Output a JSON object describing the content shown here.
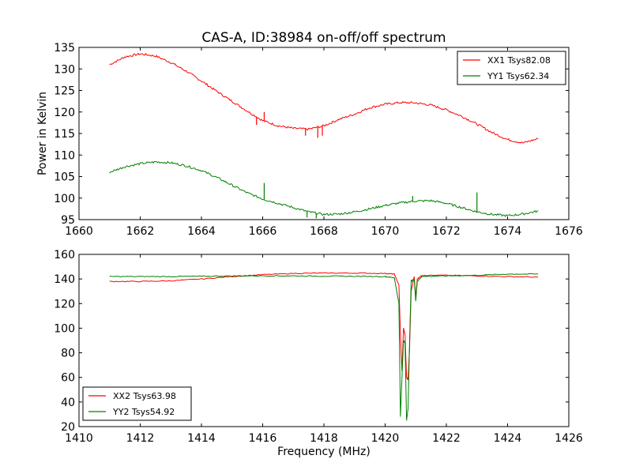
{
  "chart_data": [
    {
      "type": "line",
      "title": "CAS-A, ID:38984 on-off/off spectrum",
      "xlabel": "",
      "ylabel": "Power in Kelvin",
      "xlim": [
        1660,
        1676
      ],
      "ylim": [
        95,
        135
      ],
      "xticks": [
        1660,
        1662,
        1664,
        1666,
        1668,
        1670,
        1672,
        1674,
        1676
      ],
      "yticks": [
        95,
        100,
        105,
        110,
        115,
        120,
        125,
        130,
        135
      ],
      "grid": false,
      "legend_position": "top-right",
      "series": [
        {
          "name": "XX1 Tsys82.08",
          "color": "#ff0000",
          "points": [
            [
              1661.0,
              131.0
            ],
            [
              1661.5,
              132.8
            ],
            [
              1662.0,
              133.5
            ],
            [
              1662.5,
              133.0
            ],
            [
              1663.0,
              131.5
            ],
            [
              1663.5,
              129.5
            ],
            [
              1664.0,
              127.2
            ],
            [
              1664.5,
              124.8
            ],
            [
              1665.0,
              122.5
            ],
            [
              1665.5,
              120.2
            ],
            [
              1666.0,
              118.0
            ],
            [
              1666.5,
              116.8
            ],
            [
              1667.0,
              116.2
            ],
            [
              1667.5,
              116.0
            ],
            [
              1668.0,
              116.8
            ],
            [
              1668.5,
              118.3
            ],
            [
              1669.0,
              119.5
            ],
            [
              1669.5,
              121.0
            ],
            [
              1670.0,
              121.8
            ],
            [
              1670.5,
              122.2
            ],
            [
              1671.0,
              122.1
            ],
            [
              1671.5,
              121.6
            ],
            [
              1672.0,
              120.5
            ],
            [
              1672.5,
              119.0
            ],
            [
              1673.0,
              117.2
            ],
            [
              1673.5,
              115.2
            ],
            [
              1674.0,
              113.6
            ],
            [
              1674.5,
              112.8
            ],
            [
              1675.0,
              113.8
            ]
          ],
          "spikes": [
            [
              1665.8,
              117.0
            ],
            [
              1666.05,
              120.0
            ],
            [
              1667.4,
              114.5
            ],
            [
              1667.8,
              114.0
            ],
            [
              1667.95,
              114.5
            ]
          ]
        },
        {
          "name": "YY1 Tsys62.34",
          "color": "#008000",
          "points": [
            [
              1661.0,
              106.0
            ],
            [
              1661.5,
              107.3
            ],
            [
              1662.0,
              108.0
            ],
            [
              1662.5,
              108.4
            ],
            [
              1663.0,
              108.2
            ],
            [
              1663.5,
              107.5
            ],
            [
              1664.0,
              106.4
            ],
            [
              1664.5,
              104.8
            ],
            [
              1665.0,
              103.0
            ],
            [
              1665.5,
              101.2
            ],
            [
              1666.0,
              99.8
            ],
            [
              1666.5,
              98.8
            ],
            [
              1667.0,
              97.8
            ],
            [
              1667.5,
              96.8
            ],
            [
              1668.0,
              96.2
            ],
            [
              1668.5,
              96.3
            ],
            [
              1669.0,
              96.8
            ],
            [
              1669.5,
              97.5
            ],
            [
              1670.0,
              98.3
            ],
            [
              1670.5,
              98.9
            ],
            [
              1671.0,
              99.3
            ],
            [
              1671.5,
              99.4
            ],
            [
              1672.0,
              98.8
            ],
            [
              1672.5,
              97.8
            ],
            [
              1673.0,
              96.8
            ],
            [
              1673.5,
              96.2
            ],
            [
              1674.0,
              95.9
            ],
            [
              1674.5,
              96.3
            ],
            [
              1675.0,
              97.0
            ]
          ],
          "spikes": [
            [
              1666.05,
              103.5
            ],
            [
              1667.45,
              95.5
            ],
            [
              1667.75,
              95.3
            ],
            [
              1670.9,
              100.5
            ],
            [
              1673.0,
              101.3
            ]
          ]
        }
      ]
    },
    {
      "type": "line",
      "title": "",
      "xlabel": "Frequency (MHz)",
      "ylabel": "",
      "xlim": [
        1410,
        1426
      ],
      "ylim": [
        20,
        160
      ],
      "xticks": [
        1410,
        1412,
        1414,
        1416,
        1418,
        1420,
        1422,
        1424,
        1426
      ],
      "yticks": [
        20,
        40,
        60,
        80,
        100,
        120,
        140,
        160
      ],
      "grid": false,
      "legend_position": "bottom-left",
      "series": [
        {
          "name": "XX2 Tsys63.98",
          "color": "#ff0000",
          "points": [
            [
              1411.0,
              138.0
            ],
            [
              1412.0,
              138.0
            ],
            [
              1413.0,
              138.5
            ],
            [
              1414.0,
              140.0
            ],
            [
              1415.0,
              142.0
            ],
            [
              1416.0,
              143.5
            ],
            [
              1417.0,
              144.5
            ],
            [
              1418.0,
              144.8
            ],
            [
              1419.0,
              144.8
            ],
            [
              1420.0,
              144.5
            ],
            [
              1420.3,
              144.0
            ],
            [
              1420.45,
              135.0
            ],
            [
              1420.5,
              95.0
            ],
            [
              1420.55,
              65.0
            ],
            [
              1420.6,
              100.0
            ],
            [
              1420.65,
              95.0
            ],
            [
              1420.7,
              60.0
            ],
            [
              1420.75,
              58.0
            ],
            [
              1420.8,
              85.0
            ],
            [
              1420.85,
              130.0
            ],
            [
              1420.95,
              142.0
            ],
            [
              1421.0,
              125.0
            ],
            [
              1421.05,
              140.0
            ],
            [
              1421.2,
              143.0
            ],
            [
              1422.0,
              143.0
            ],
            [
              1423.0,
              142.5
            ],
            [
              1424.0,
              142.0
            ],
            [
              1425.0,
              141.5
            ]
          ]
        },
        {
          "name": "YY2 Tsys54.92",
          "color": "#008000",
          "points": [
            [
              1411.0,
              142.0
            ],
            [
              1412.0,
              142.0
            ],
            [
              1413.0,
              142.0
            ],
            [
              1414.0,
              142.2
            ],
            [
              1415.0,
              142.5
            ],
            [
              1416.0,
              142.6
            ],
            [
              1417.0,
              142.5
            ],
            [
              1418.0,
              142.3
            ],
            [
              1419.0,
              142.2
            ],
            [
              1420.0,
              142.0
            ],
            [
              1420.3,
              141.0
            ],
            [
              1420.45,
              120.0
            ],
            [
              1420.5,
              28.0
            ],
            [
              1420.55,
              60.0
            ],
            [
              1420.6,
              90.0
            ],
            [
              1420.65,
              88.0
            ],
            [
              1420.7,
              25.0
            ],
            [
              1420.75,
              35.0
            ],
            [
              1420.8,
              90.0
            ],
            [
              1420.85,
              138.0
            ],
            [
              1420.95,
              140.0
            ],
            [
              1421.0,
              122.0
            ],
            [
              1421.05,
              138.0
            ],
            [
              1421.2,
              142.0
            ],
            [
              1422.0,
              142.5
            ],
            [
              1423.0,
              143.0
            ],
            [
              1424.0,
              144.0
            ],
            [
              1425.0,
              144.0
            ]
          ]
        }
      ]
    }
  ]
}
